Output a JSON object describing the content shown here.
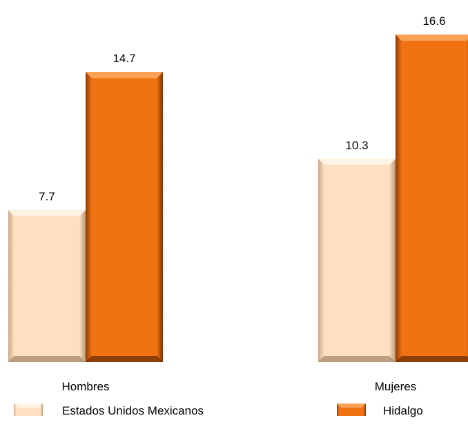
{
  "chart_data": {
    "type": "bar",
    "categories": [
      "Hombres",
      "Mujeres"
    ],
    "series": [
      {
        "name": "Estados Unidos Mexicanos",
        "values": [
          7.7,
          10.3
        ],
        "color": "#fde0c1"
      },
      {
        "name": "Hidalgo",
        "values": [
          14.7,
          16.6
        ],
        "color": "#f07212"
      }
    ],
    "ylim": [
      0,
      17.3
    ],
    "grid": false,
    "legend_position": "bottom",
    "data_labels": true
  }
}
